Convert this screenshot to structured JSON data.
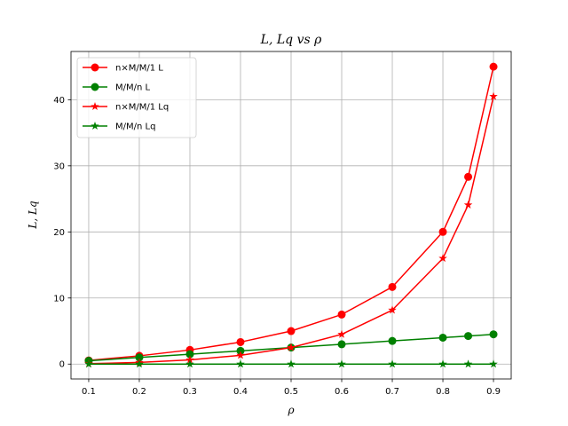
{
  "chart_data": {
    "type": "line",
    "title": "L, Lq vs ρ",
    "xlabel": "ρ",
    "ylabel": "L, Lq",
    "xlim": [
      0.065,
      0.935
    ],
    "ylim": [
      -2.25,
      47.3
    ],
    "xticks": [
      0.1,
      0.2,
      0.3,
      0.4,
      0.5,
      0.6,
      0.7,
      0.8,
      0.9
    ],
    "xtick_labels": [
      "0.1",
      "0.2",
      "0.3",
      "0.4",
      "0.5",
      "0.6",
      "0.7",
      "0.8",
      "0.9"
    ],
    "yticks": [
      0,
      10,
      20,
      30,
      40
    ],
    "ytick_labels": [
      "0",
      "10",
      "20",
      "30",
      "40"
    ],
    "grid": true,
    "legend_position": "top-left",
    "x": [
      0.1,
      0.2,
      0.3,
      0.4,
      0.5,
      0.6,
      0.7,
      0.8,
      0.85,
      0.9
    ],
    "series": [
      {
        "name": "n×M/M/1 L",
        "color": "#ff0000",
        "marker": "circle",
        "values": [
          0.56,
          1.25,
          2.14,
          3.33,
          5.0,
          7.5,
          11.67,
          20.0,
          28.33,
          45.0
        ]
      },
      {
        "name": "M/M/n L",
        "color": "#008000",
        "marker": "circle",
        "values": [
          0.5,
          1.0,
          1.5,
          2.0,
          2.5,
          3.0,
          3.5,
          4.0,
          4.25,
          4.5
        ]
      },
      {
        "name": "n×M/M/1 Lq",
        "color": "#ff0000",
        "marker": "star",
        "values": [
          0.06,
          0.25,
          0.64,
          1.33,
          2.5,
          4.5,
          8.17,
          16.0,
          24.08,
          40.5
        ]
      },
      {
        "name": "M/M/n Lq",
        "color": "#008000",
        "marker": "star",
        "values": [
          0.0,
          0.0,
          0.0,
          0.0,
          0.0,
          0.0,
          0.0,
          0.0,
          0.0,
          0.0
        ]
      }
    ]
  }
}
